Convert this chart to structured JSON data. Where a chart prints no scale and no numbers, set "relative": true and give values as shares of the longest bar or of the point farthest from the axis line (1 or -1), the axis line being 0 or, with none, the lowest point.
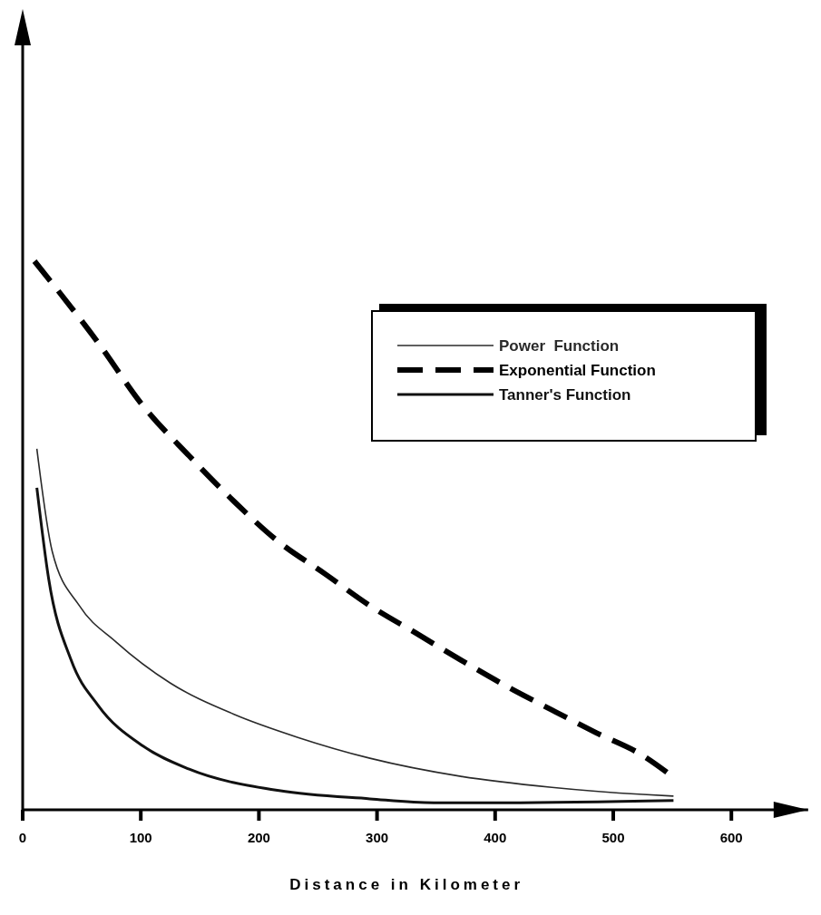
{
  "chart_data": {
    "type": "line",
    "relative": true,
    "xlabel": "Distance in Kilometer",
    "xlim": [
      0,
      665
    ],
    "xticks": [
      0,
      100,
      200,
      300,
      400,
      500,
      600
    ],
    "legend": "top right",
    "grid": false,
    "marker": "none",
    "series": [
      {
        "name": "Power  Function",
        "color": "#2a2a2a",
        "line_style": "solid",
        "x": [
          12,
          25,
          48,
          79,
          125,
          179,
          233,
          294,
          371,
          448,
          525,
          551
        ],
        "values": [
          0.658,
          0.471,
          0.372,
          0.306,
          0.231,
          0.174,
          0.132,
          0.094,
          0.061,
          0.041,
          0.028,
          0.025
        ]
      },
      {
        "name": "Exponential Function",
        "color": "#000000",
        "line_style": "dashed",
        "x": [
          10,
          64,
          102,
          141,
          179,
          217,
          256,
          294,
          333,
          371,
          409,
          448,
          486,
          525,
          550
        ],
        "values": [
          1.0,
          0.851,
          0.736,
          0.645,
          0.562,
          0.488,
          0.43,
          0.372,
          0.322,
          0.273,
          0.226,
          0.182,
          0.14,
          0.099,
          0.061
        ]
      },
      {
        "name": "Tanner's Function",
        "color": "#111111",
        "line_style": "solid",
        "x": [
          12,
          22,
          41,
          64,
          102,
          141,
          217,
          294,
          348,
          409,
          551
        ],
        "values": [
          0.587,
          0.421,
          0.273,
          0.19,
          0.116,
          0.074,
          0.035,
          0.02,
          0.013,
          0.013,
          0.017
        ]
      }
    ]
  }
}
